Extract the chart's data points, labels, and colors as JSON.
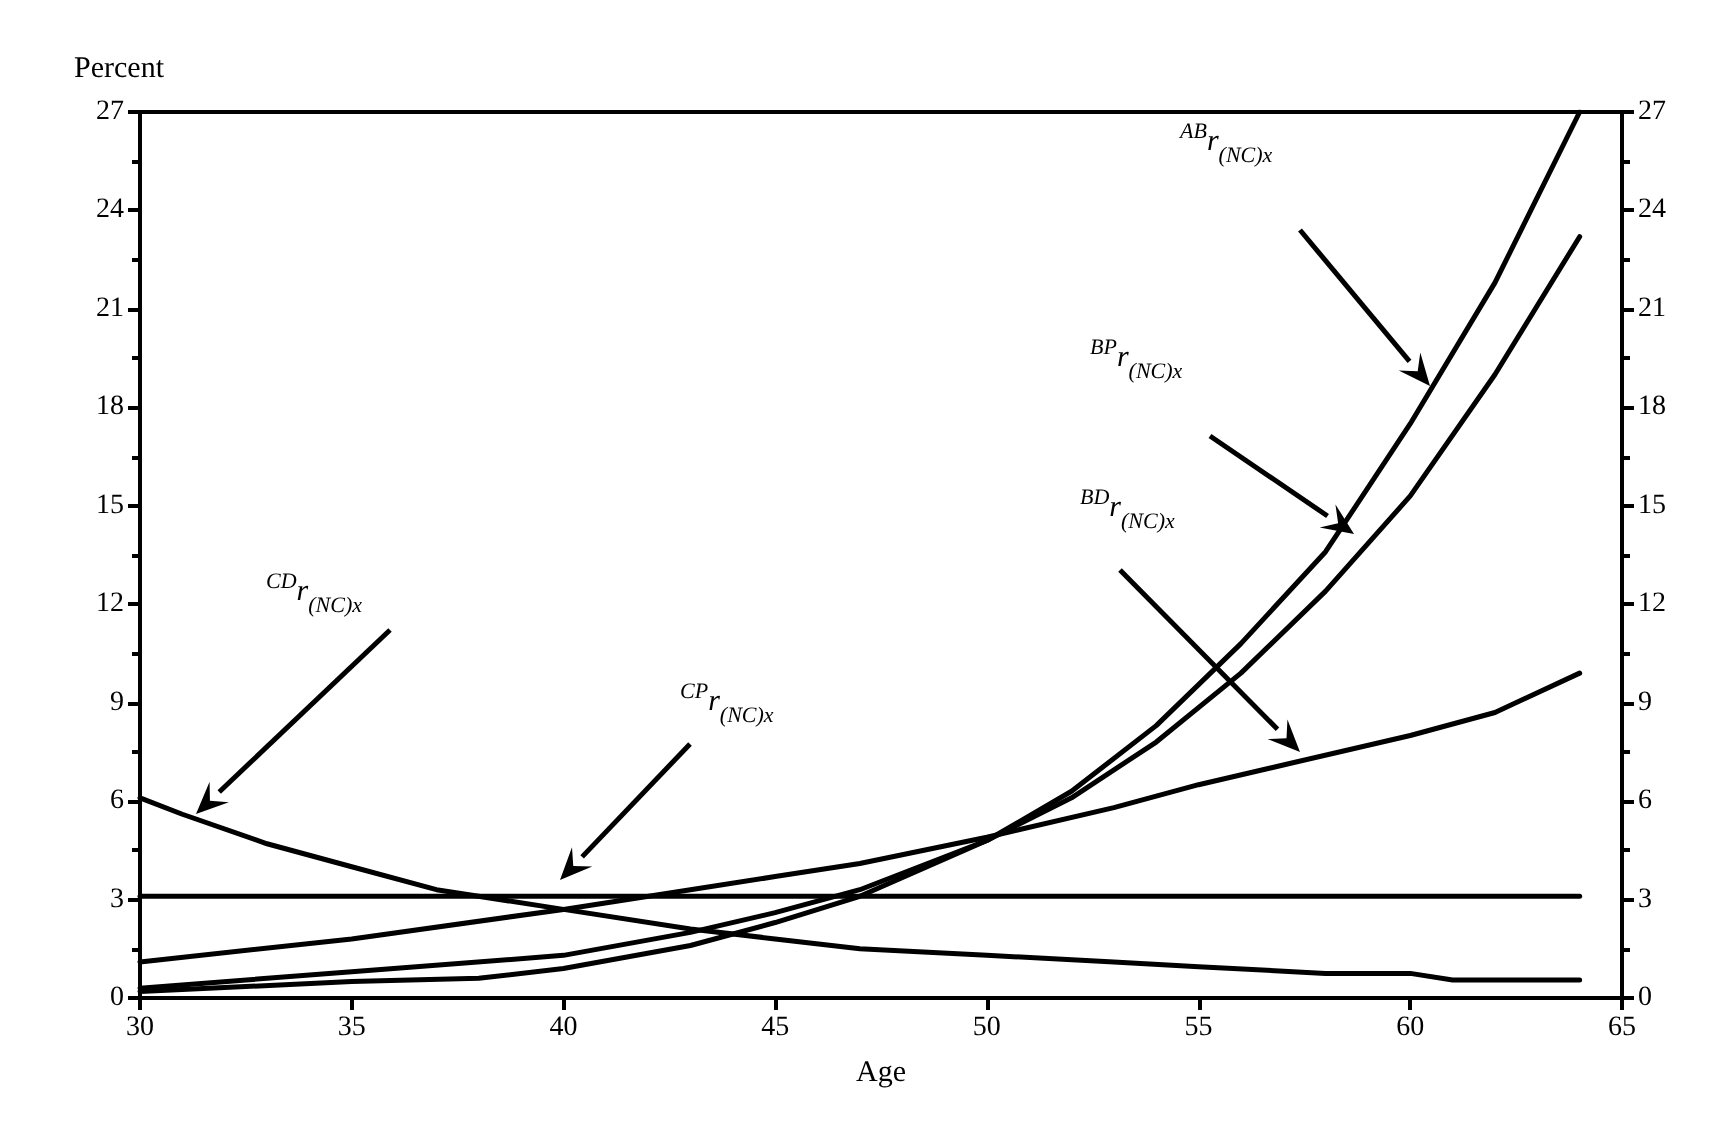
{
  "chart_data": {
    "type": "line",
    "xlabel": "Age",
    "ylabel": "Percent",
    "xlim": [
      30,
      65
    ],
    "xticks": [
      30,
      35,
      40,
      45,
      50,
      55,
      60,
      65
    ],
    "ylim": [
      0,
      27
    ],
    "yticks": [
      0,
      3,
      6,
      9,
      12,
      15,
      18,
      21,
      24,
      27
    ],
    "y2lim": [
      0,
      27
    ],
    "y2ticks": [
      0,
      3,
      6,
      9,
      12,
      15,
      18,
      21,
      24,
      27
    ],
    "grid": false,
    "marker": "none",
    "line_style": "solid",
    "series": [
      {
        "color": "#000000",
        "x": [
          30,
          35,
          38,
          40,
          43,
          45,
          47,
          50,
          52,
          54,
          56,
          58,
          60,
          62,
          64
        ],
        "values": [
          0.2,
          0.5,
          0.6,
          0.9,
          1.6,
          2.3,
          3.1,
          4.8,
          6.3,
          8.3,
          10.8,
          13.6,
          17.5,
          21.8,
          27.0
        ]
      },
      {
        "color": "#000000",
        "x": [
          30,
          35,
          40,
          43,
          45,
          47,
          50,
          52,
          54,
          56,
          58,
          60,
          62,
          64
        ],
        "values": [
          0.3,
          0.8,
          1.3,
          2.0,
          2.6,
          3.3,
          4.8,
          6.1,
          7.8,
          9.9,
          12.4,
          15.3,
          19.0,
          23.2
        ]
      },
      {
        "color": "#000000",
        "x": [
          30,
          35,
          40,
          43,
          45,
          47,
          50,
          53,
          55,
          57,
          60,
          62,
          64
        ],
        "values": [
          1.1,
          1.8,
          2.7,
          3.3,
          3.7,
          4.1,
          4.9,
          5.8,
          6.5,
          7.1,
          8.0,
          8.7,
          9.9
        ]
      },
      {
        "color": "#000000",
        "x": [
          30,
          64
        ],
        "values": [
          3.1,
          3.1
        ]
      },
      {
        "color": "#000000",
        "x": [
          30,
          31,
          33,
          35,
          37,
          40,
          43,
          45,
          47,
          50,
          53,
          55,
          58,
          60,
          61,
          64
        ],
        "values": [
          6.1,
          5.6,
          4.7,
          4.0,
          3.3,
          2.7,
          2.1,
          1.8,
          1.5,
          1.3,
          1.1,
          0.95,
          0.75,
          0.75,
          0.55,
          0.55
        ]
      }
    ],
    "annotations": [
      "$^{AB}$r$_{(NC)x}$",
      "$^{BP}$r$_{(NC)x}$",
      "$^{BD}$r$_{(NC)x}$",
      "$^{CD}$r$_{(NC)x}$",
      "$^{CP}$r$_{(NC)x}$"
    ]
  }
}
